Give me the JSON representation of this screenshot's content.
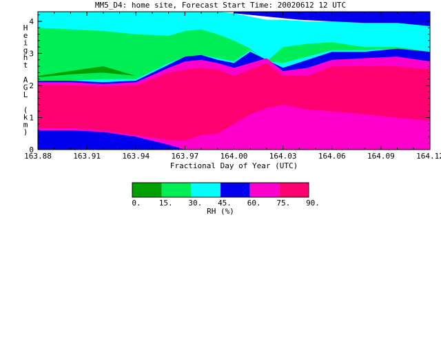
{
  "title": "MM5_D4: home site,  Forecast Start Time: 20020612 12 UTC",
  "chart_data": {
    "type": "heatmap",
    "xlabel": "Fractional Day of Year (UTC)",
    "ylabel": "Height AGL (km)",
    "xlim": [
      163.88,
      164.12
    ],
    "ylim": [
      0,
      4.3
    ],
    "x_ticks": [
      "163.88",
      "163.91",
      "163.94",
      "163.97",
      "164.00",
      "164.03",
      "164.06",
      "164.09",
      "164.12"
    ],
    "y_ticks": [
      "0",
      "1",
      "2",
      "3",
      "4"
    ],
    "colorbar": {
      "label": "RH (%)",
      "ticks": [
        "0.",
        "15.",
        "30.",
        "45.",
        "60.",
        "75.",
        "90."
      ],
      "colors": [
        "#00a000",
        "#00ee55",
        "#00ffff",
        "#0000ee",
        "#ff00cc",
        "#ff0070"
      ]
    },
    "x": [
      163.88,
      163.9,
      163.92,
      163.94,
      163.96,
      163.97,
      163.98,
      163.99,
      164.0,
      164.01,
      164.02,
      164.03,
      164.045,
      164.06,
      164.08,
      164.1,
      164.12
    ],
    "levels": [
      {
        "name": "75-90",
        "color": "#ff0070",
        "lower": [
          0.68,
          0.67,
          0.6,
          0.45,
          0.3,
          0.28,
          0.45,
          0.5,
          0.8,
          1.1,
          1.3,
          1.4,
          1.25,
          1.2,
          1.1,
          1.0,
          0.9
        ],
        "upper": [
          2.0,
          2.0,
          1.98,
          2.0,
          2.4,
          2.5,
          2.55,
          2.5,
          2.3,
          2.5,
          2.7,
          2.3,
          2.3,
          2.6,
          2.6,
          2.6,
          2.5
        ]
      },
      {
        "name": "60-75",
        "color": "#ff00cc",
        "lower": [
          0.6,
          0.6,
          0.55,
          0.4,
          0.15,
          0.0,
          0.0,
          0.0,
          0.0,
          0.0,
          0.0,
          0.0,
          0.0,
          0.0,
          0.0,
          0.0,
          0.0
        ],
        "upper": [
          2.1,
          2.1,
          2.05,
          2.1,
          2.55,
          2.75,
          2.8,
          2.7,
          2.55,
          2.7,
          2.85,
          2.45,
          2.55,
          2.8,
          2.85,
          2.9,
          2.75
        ]
      },
      {
        "name": "45-60",
        "color": "#0000ee",
        "lower": [
          0,
          0,
          0,
          0,
          0,
          0,
          0,
          0,
          0,
          0,
          0,
          0,
          0,
          0,
          0,
          0,
          0
        ],
        "upper": [
          2.15,
          2.15,
          2.1,
          2.15,
          2.65,
          2.9,
          2.95,
          2.8,
          2.7,
          3.05,
          2.8,
          2.55,
          2.8,
          3.05,
          3.05,
          3.15,
          3.05
        ]
      },
      {
        "name": "30-45",
        "color": "#00ffff",
        "lower": [
          0,
          0,
          0,
          0,
          0,
          0,
          0,
          0,
          0,
          0,
          0,
          0,
          0,
          0,
          0,
          0,
          0
        ],
        "upper": [
          4.3,
          4.3,
          4.3,
          4.3,
          4.3,
          4.3,
          4.3,
          4.3,
          4.25,
          4.15,
          4.05,
          4.05,
          4.0,
          4.0,
          3.95,
          3.95,
          3.9
        ]
      },
      {
        "name": "15-30",
        "color": "#00ee55",
        "lower": [
          2.1,
          2.15,
          2.2,
          2.2,
          2.7,
          2.9,
          2.95,
          2.85,
          2.75,
          3.1,
          2.75,
          2.7,
          2.9,
          3.1,
          3.1,
          3.15,
          3.05
        ],
        "upper": [
          3.8,
          3.75,
          3.7,
          3.6,
          3.55,
          3.7,
          3.75,
          3.6,
          3.4,
          3.15,
          2.75,
          3.2,
          3.3,
          3.35,
          3.2,
          3.2,
          3.05
        ]
      },
      {
        "name": "0-15",
        "color": "#00a000",
        "lower": [
          2.25,
          2.35,
          2.4,
          2.3,
          2.3,
          2.3,
          2.3,
          2.3,
          2.3,
          2.3,
          2.3,
          2.3,
          2.3,
          2.3,
          2.3,
          2.3,
          2.3
        ],
        "upper": [
          2.3,
          2.45,
          2.6,
          2.3,
          2.3,
          2.3,
          2.3,
          2.3,
          2.3,
          2.3,
          2.3,
          2.3,
          2.3,
          2.3,
          2.3,
          2.3,
          2.3
        ]
      }
    ],
    "upper_band": {
      "name": "45-60 top",
      "color": "#0000ee",
      "x": [
        164.0,
        164.02,
        164.04,
        164.06,
        164.08,
        164.1,
        164.12
      ],
      "lower": [
        4.25,
        4.15,
        4.05,
        4.0,
        3.95,
        3.95,
        3.85
      ],
      "upper": [
        4.3,
        4.3,
        4.3,
        4.3,
        4.3,
        4.3,
        4.3
      ]
    }
  }
}
